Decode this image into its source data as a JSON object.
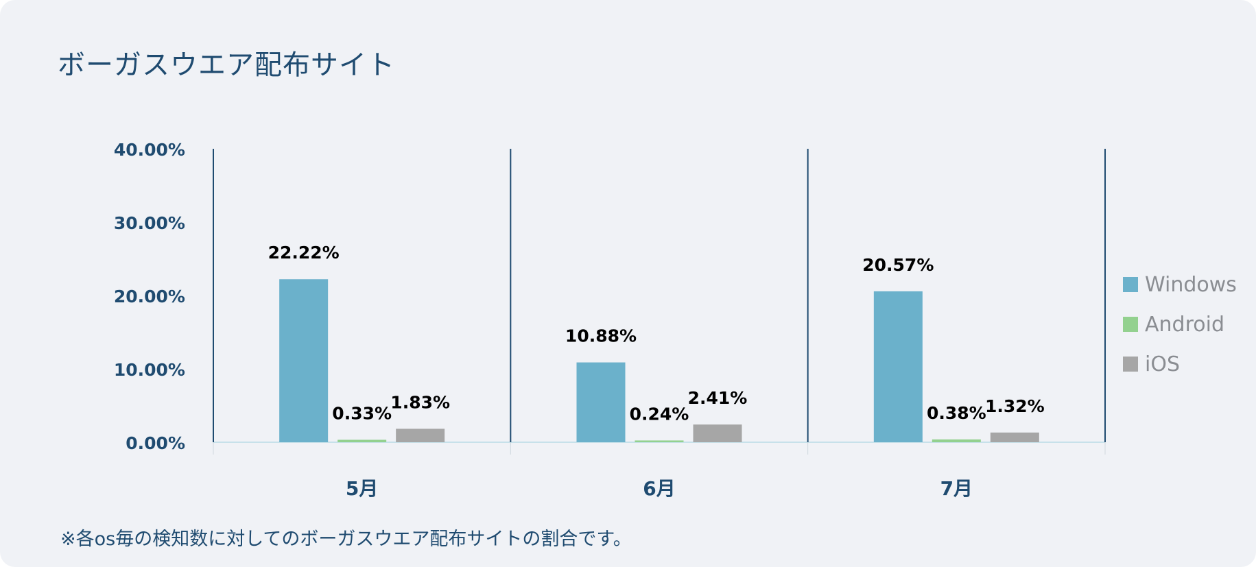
{
  "chart_data": {
    "type": "bar",
    "title": "ボーガスウエア配布サイト",
    "note": "※各os毎の検知数に対してのボーガスウエア配布サイトの割合です。",
    "categories": [
      "5月",
      "6月",
      "7月"
    ],
    "series": [
      {
        "name": "Windows",
        "color": "#6bb1cb",
        "values": [
          22.22,
          10.88,
          20.57
        ],
        "labels": [
          "22.22%",
          "10.88%",
          "20.57%"
        ]
      },
      {
        "name": "Android",
        "color": "#93d18f",
        "values": [
          0.33,
          0.24,
          0.38
        ],
        "labels": [
          "0.33%",
          "0.24%",
          "0.38%"
        ]
      },
      {
        "name": "iOS",
        "color": "#a6a6a6",
        "values": [
          1.83,
          2.41,
          1.32
        ],
        "labels": [
          "1.83%",
          "2.41%",
          "1.32%"
        ]
      }
    ],
    "yticks": [
      {
        "value": 0,
        "label": "0.00%"
      },
      {
        "value": 10,
        "label": "10.00%"
      },
      {
        "value": 20,
        "label": "20.00%"
      },
      {
        "value": 30,
        "label": "30.00%"
      },
      {
        "value": 40,
        "label": "40.00%"
      }
    ],
    "ylim": [
      0,
      40
    ],
    "grid": false,
    "legend": "right",
    "colors": {
      "axis_text": "#1f4b70",
      "divider": "#1f4b70",
      "baseline": "#b9dbe6",
      "label": "#000000"
    }
  }
}
